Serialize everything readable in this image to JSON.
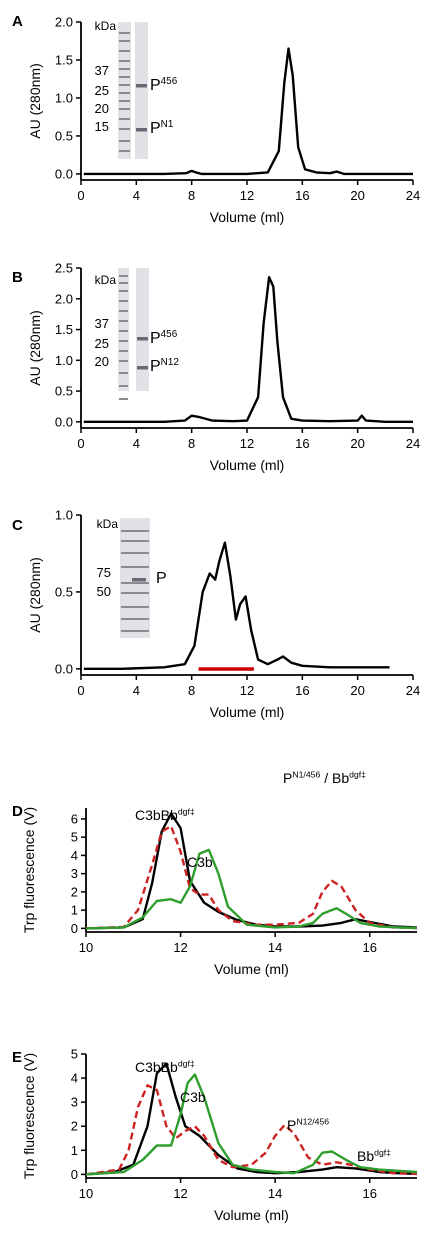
{
  "chart_data": [
    {
      "panel": "A",
      "type": "line",
      "xlabel": "Volume (ml)",
      "ylabel": "AU (280nm)",
      "xlim": [
        0,
        24
      ],
      "ylim": [
        -0.08,
        2.0
      ],
      "xticks": [
        0,
        4,
        8,
        12,
        16,
        20,
        24
      ],
      "yticks": [
        0.0,
        0.5,
        1.0,
        1.5,
        2.0
      ],
      "ytick_labels": [
        "0.0",
        "0.5",
        "1.0",
        "1.5",
        "2.0"
      ],
      "grid": false,
      "series": [
        {
          "color": "#000000",
          "dashed": false,
          "x": [
            0.2,
            3,
            6,
            7.6,
            8.0,
            8.3,
            8.7,
            10,
            12,
            13.5,
            14.3,
            14.7,
            15.0,
            15.3,
            15.7,
            16.2,
            17,
            18,
            18.5,
            19,
            20,
            22,
            24
          ],
          "y": [
            0.0,
            0.0,
            0.0,
            0.01,
            0.04,
            0.02,
            0.0,
            0.0,
            0.0,
            0.02,
            0.3,
            1.2,
            1.65,
            1.3,
            0.35,
            0.06,
            0.02,
            0.01,
            0.03,
            0.0,
            0.0,
            0.0,
            0.0
          ]
        }
      ],
      "gel": {
        "unit_label": "kDa",
        "marker_labels": [
          "37",
          "25",
          "20",
          "15"
        ],
        "band_labels": [
          {
            "main": "P",
            "sup": "456"
          },
          {
            "main": "P",
            "sup": "N1"
          }
        ]
      }
    },
    {
      "panel": "B",
      "type": "line",
      "xlabel": "Volume (ml)",
      "ylabel": "AU (280nm)",
      "xlim": [
        0,
        24
      ],
      "ylim": [
        -0.1,
        2.5
      ],
      "xticks": [
        0,
        4,
        8,
        12,
        16,
        20,
        24
      ],
      "yticks": [
        0.0,
        0.5,
        1.0,
        1.5,
        2.0,
        2.5
      ],
      "ytick_labels": [
        "0.0",
        "0.5",
        "1.0",
        "1.5",
        "2.0",
        "2.5"
      ],
      "grid": false,
      "series": [
        {
          "color": "#000000",
          "dashed": false,
          "x": [
            0.2,
            3,
            6,
            7.5,
            8.0,
            8.5,
            9.5,
            11,
            12,
            12.8,
            13.2,
            13.6,
            13.9,
            14.2,
            14.6,
            15.2,
            16,
            18,
            20,
            20.3,
            20.6,
            22,
            24
          ],
          "y": [
            0.0,
            0.0,
            0.0,
            0.02,
            0.1,
            0.08,
            0.02,
            0.01,
            0.02,
            0.4,
            1.6,
            2.35,
            2.2,
            1.3,
            0.4,
            0.05,
            0.02,
            0.01,
            0.02,
            0.1,
            0.02,
            0.0,
            0.0
          ]
        }
      ],
      "gel": {
        "unit_label": "kDa",
        "marker_labels": [
          "37",
          "25",
          "20"
        ],
        "band_labels": [
          {
            "main": "P",
            "sup": "456"
          },
          {
            "main": "P",
            "sup": "N12"
          }
        ]
      }
    },
    {
      "panel": "C",
      "type": "line",
      "xlabel": "Volume (ml)",
      "ylabel": "AU (280nm)",
      "xlim": [
        0,
        24
      ],
      "ylim": [
        -0.04,
        1.0
      ],
      "xticks": [
        0,
        4,
        8,
        12,
        16,
        20,
        24
      ],
      "yticks": [
        0.0,
        0.5,
        1.0
      ],
      "ytick_labels": [
        "0.0",
        "0.5",
        "1.0"
      ],
      "grid": false,
      "series": [
        {
          "color": "#000000",
          "dashed": false,
          "x": [
            0.2,
            3,
            6,
            7.5,
            8.2,
            8.8,
            9.3,
            9.7,
            10.0,
            10.4,
            10.8,
            11.2,
            11.5,
            11.9,
            12.3,
            12.8,
            13.5,
            14.2,
            14.6,
            15.2,
            16,
            18,
            20,
            22.3
          ],
          "y": [
            0.0,
            0.0,
            0.01,
            0.03,
            0.15,
            0.5,
            0.62,
            0.58,
            0.7,
            0.82,
            0.6,
            0.32,
            0.42,
            0.47,
            0.25,
            0.06,
            0.03,
            0.06,
            0.08,
            0.04,
            0.02,
            0.01,
            0.01,
            0.01
          ]
        }
      ],
      "fraction_bar": {
        "x_start": 8.5,
        "x_end": 12.5,
        "color": "#cc0000"
      },
      "gel": {
        "unit_label": "kDa",
        "marker_labels": [
          "75",
          "50"
        ],
        "band_labels": [
          {
            "main": "P",
            "sup": ""
          }
        ]
      }
    },
    {
      "panel": "D",
      "type": "line",
      "xlabel": "Volume (ml)",
      "ylabel": "Trp fluorescence (V)",
      "xlim": [
        10,
        17
      ],
      "ylim": [
        -0.2,
        6.6
      ],
      "xticks": [
        10,
        12,
        14,
        16
      ],
      "yticks": [
        0,
        1,
        2,
        3,
        4,
        5,
        6
      ],
      "ytick_labels": [
        "0",
        "1",
        "2",
        "3",
        "4",
        "5",
        "6"
      ],
      "grid": false,
      "annotations": [
        {
          "main": "C3bBb",
          "sup": "dgf‡"
        },
        {
          "main": "C3b",
          "sup": ""
        },
        {
          "main": "P",
          "sup": "N1/456",
          "suffix": " / Bb",
          "suffix_sup": "dgf‡"
        }
      ],
      "series": [
        {
          "color": "#000000",
          "dashed": false,
          "x": [
            10,
            10.8,
            11.2,
            11.4,
            11.6,
            11.8,
            12.0,
            12.2,
            12.5,
            12.8,
            13.2,
            13.6,
            14.0,
            14.5,
            15.0,
            15.4,
            15.7,
            16.0,
            16.5,
            17
          ],
          "y": [
            0.0,
            0.05,
            0.5,
            2.5,
            5.3,
            6.3,
            5.5,
            2.6,
            1.4,
            0.9,
            0.45,
            0.2,
            0.1,
            0.1,
            0.15,
            0.3,
            0.5,
            0.35,
            0.1,
            0.05
          ]
        },
        {
          "color": "#cc2222",
          "dashed": true,
          "x": [
            10,
            10.8,
            11.1,
            11.4,
            11.6,
            11.8,
            12.0,
            12.2,
            12.4,
            12.6,
            12.8,
            13.1,
            13.6,
            14.0,
            14.5,
            14.8,
            15.0,
            15.2,
            15.4,
            15.7,
            16.0,
            16.5,
            17
          ],
          "y": [
            0.0,
            0.08,
            1.0,
            3.5,
            5.3,
            5.6,
            4.2,
            2.2,
            1.85,
            1.85,
            1.0,
            0.4,
            0.2,
            0.2,
            0.3,
            0.8,
            2.0,
            2.6,
            2.3,
            1.0,
            0.3,
            0.05,
            0.02
          ]
        },
        {
          "color": "#2e9e2e",
          "dashed": false,
          "x": [
            10,
            10.8,
            11.2,
            11.5,
            11.8,
            12.0,
            12.2,
            12.4,
            12.6,
            12.8,
            13.0,
            13.4,
            14.0,
            14.5,
            14.8,
            15.0,
            15.3,
            15.5,
            15.8,
            16.2,
            16.6,
            17
          ],
          "y": [
            0.0,
            0.05,
            0.6,
            1.5,
            1.6,
            1.4,
            2.3,
            4.1,
            4.3,
            3.0,
            1.2,
            0.2,
            0.05,
            0.1,
            0.3,
            0.8,
            1.1,
            0.8,
            0.3,
            0.1,
            0.05,
            0.02
          ]
        }
      ]
    },
    {
      "panel": "E",
      "type": "line",
      "xlabel": "Volume (ml)",
      "ylabel": "Trp fluorescence (V)",
      "xlim": [
        10,
        17
      ],
      "ylim": [
        -0.15,
        5.0
      ],
      "xticks": [
        10,
        12,
        14,
        16
      ],
      "yticks": [
        0,
        1,
        2,
        3,
        4,
        5
      ],
      "ytick_labels": [
        "0",
        "1",
        "2",
        "3",
        "4",
        "5"
      ],
      "grid": false,
      "annotations": [
        {
          "main": "C3bBb",
          "sup": "dgf‡"
        },
        {
          "main": "C3b",
          "sup": ""
        },
        {
          "main": "P",
          "sup": "N12/456"
        },
        {
          "main": "Bb",
          "sup": "dgf‡"
        }
      ],
      "series": [
        {
          "color": "#000000",
          "dashed": false,
          "x": [
            10,
            10.6,
            11.0,
            11.3,
            11.5,
            11.7,
            11.9,
            12.1,
            12.4,
            12.8,
            13.2,
            13.6,
            14.0,
            14.5,
            15.0,
            15.3,
            15.7,
            16.2,
            16.6,
            17
          ],
          "y": [
            0.0,
            0.1,
            0.4,
            2.0,
            4.2,
            4.6,
            3.2,
            2.0,
            1.6,
            0.8,
            0.25,
            0.1,
            0.05,
            0.1,
            0.2,
            0.3,
            0.25,
            0.1,
            0.05,
            0.02
          ]
        },
        {
          "color": "#cc2222",
          "dashed": true,
          "x": [
            10,
            10.7,
            10.9,
            11.1,
            11.3,
            11.5,
            11.7,
            11.9,
            12.1,
            12.3,
            12.5,
            12.8,
            13.1,
            13.5,
            13.8,
            14.0,
            14.2,
            14.4,
            14.7,
            15.0,
            15.3,
            15.6,
            16.0,
            16.5,
            17
          ],
          "y": [
            0.0,
            0.2,
            1.0,
            2.8,
            3.7,
            3.5,
            2.0,
            1.5,
            1.8,
            2.0,
            1.6,
            0.6,
            0.3,
            0.4,
            0.9,
            1.6,
            2.05,
            1.7,
            0.7,
            0.4,
            0.5,
            0.4,
            0.2,
            0.05,
            0.02
          ]
        },
        {
          "color": "#2e9e2e",
          "dashed": false,
          "x": [
            10,
            10.8,
            11.2,
            11.5,
            11.8,
            12.0,
            12.15,
            12.3,
            12.5,
            12.8,
            13.1,
            13.5,
            14.0,
            14.4,
            14.8,
            15.0,
            15.2,
            15.5,
            15.8,
            16.2,
            16.6,
            17
          ],
          "y": [
            0.0,
            0.1,
            0.6,
            1.2,
            1.2,
            2.5,
            3.8,
            4.15,
            3.2,
            1.3,
            0.4,
            0.2,
            0.1,
            0.05,
            0.4,
            0.9,
            0.95,
            0.6,
            0.3,
            0.2,
            0.15,
            0.1
          ]
        }
      ]
    }
  ]
}
